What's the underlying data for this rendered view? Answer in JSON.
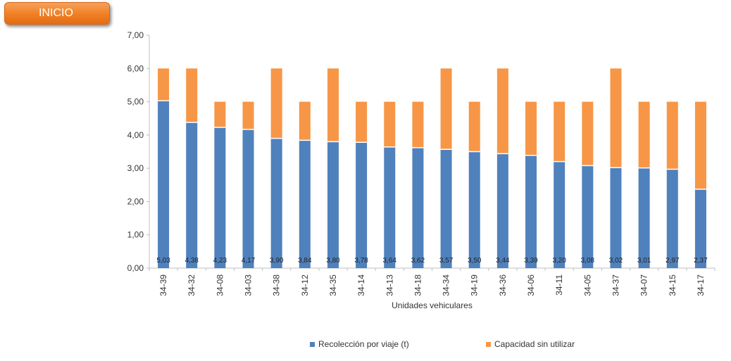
{
  "nav": {
    "inicio_label": "INICIO"
  },
  "colors": {
    "primary": "#4f81bd",
    "secondary": "#f79646",
    "button": "#f07f24"
  },
  "chart_data": {
    "type": "bar",
    "stacked": true,
    "categories": [
      "34-39",
      "34-32",
      "34-08",
      "34-03",
      "34-38",
      "34-12",
      "34-35",
      "34-14",
      "34-13",
      "34-18",
      "34-34",
      "34-19",
      "34-36",
      "34-06",
      "34-11",
      "34-05",
      "34-37",
      "34-07",
      "34-15",
      "34-17"
    ],
    "series": [
      {
        "name": "Recolección por viaje (t)",
        "color": "#4f81bd",
        "values": [
          5.03,
          4.38,
          4.23,
          4.17,
          3.9,
          3.84,
          3.8,
          3.78,
          3.64,
          3.62,
          3.57,
          3.5,
          3.44,
          3.39,
          3.2,
          3.08,
          3.02,
          3.01,
          2.97,
          2.37
        ],
        "labels": [
          "5,03",
          "4,38",
          "4,23",
          "4,17",
          "3,90",
          "3,84",
          "3,80",
          "3,78",
          "3,64",
          "3,62",
          "3,57",
          "3,50",
          "3,44",
          "3,39",
          "3,20",
          "3,08",
          "3,02",
          "3,01",
          "2,97",
          "2,37"
        ]
      },
      {
        "name": "Capacidad sin utilizar",
        "color": "#f79646",
        "values": [
          0.97,
          1.62,
          0.77,
          0.83,
          2.1,
          1.16,
          2.2,
          1.22,
          1.36,
          1.38,
          2.43,
          1.5,
          2.56,
          1.61,
          1.8,
          1.92,
          2.98,
          1.99,
          2.03,
          2.63
        ]
      }
    ],
    "xlabel": "Unidades vehiculares",
    "ylabel": "",
    "ylim": [
      0,
      7
    ],
    "yticks": [
      "0,00",
      "1,00",
      "2,00",
      "3,00",
      "4,00",
      "5,00",
      "6,00",
      "7,00"
    ],
    "legend_position": "bottom",
    "grid": false
  }
}
